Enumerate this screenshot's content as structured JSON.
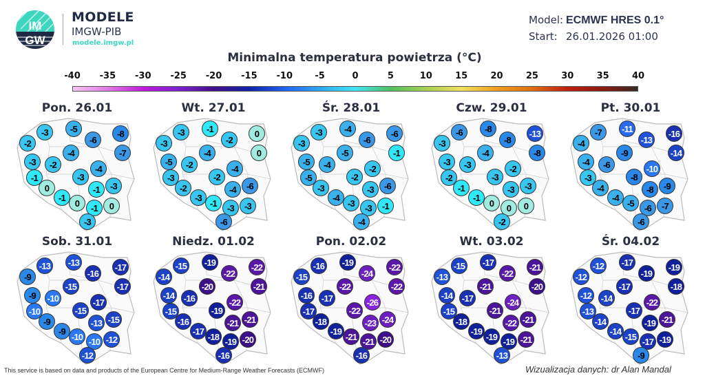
{
  "brand": {
    "title": "MODELE",
    "subtitle": "IMGW-PIB",
    "url": "modele.imgw.pl",
    "logo_text": "IMGW"
  },
  "meta": {
    "model_label": "Model:",
    "model_value": "ECMWF HRES 0.1°",
    "start_label": "Start:",
    "start_value": "26.01.2026 01:00"
  },
  "title": "Minimalna temperatura powietrza (°C)",
  "colorbar": {
    "ticks": [
      "-40",
      "-35",
      "-30",
      "-25",
      "-20",
      "-15",
      "-10",
      "-5",
      "0",
      "5",
      "10",
      "15",
      "20",
      "25",
      "30",
      "35",
      "40"
    ],
    "colors": [
      "#f6c6f0",
      "#e07ae2",
      "#c018dc",
      "#7a22d0",
      "#44108a",
      "#1022a8",
      "#2062f0",
      "#30a8f0",
      "#40e6f2",
      "#50c060",
      "#a8d050",
      "#f0e060",
      "#f0a020",
      "#e07010",
      "#c02010",
      "#8a1a12",
      "#3a2a22"
    ]
  },
  "circle_palette": [
    [
      -26,
      "#8a22e0"
    ],
    [
      -24,
      "#6c20c0"
    ],
    [
      -22,
      "#5a18a8"
    ],
    [
      -21,
      "#4c1498"
    ],
    [
      -20,
      "#3c1088"
    ],
    [
      -19,
      "#10209a"
    ],
    [
      -17,
      "#1a30b4"
    ],
    [
      -15,
      "#1c42c8"
    ],
    [
      -13,
      "#2052d8"
    ],
    [
      -11,
      "#2a6aec"
    ],
    [
      -10,
      "#2a78f4"
    ],
    [
      -9,
      "#2a88e8"
    ],
    [
      -7,
      "#3a98e6"
    ],
    [
      -5,
      "#3ab0ec"
    ],
    [
      -3,
      "#38c6f0"
    ],
    [
      -1,
      "#30e8f8"
    ],
    [
      0,
      "#a0ece0"
    ]
  ],
  "panels": [
    {
      "title": "Pon. 26.01",
      "values": [
        -3,
        -5,
        -6,
        -8,
        -2,
        -7,
        -4,
        -3,
        -2,
        -4,
        -1,
        -3,
        0,
        -1,
        -3,
        -1,
        0,
        -1,
        0,
        -3
      ]
    },
    {
      "title": "Wt. 27.01",
      "values": [
        -3,
        -1,
        -2,
        0,
        -3,
        0,
        -4,
        -5,
        -2,
        -4,
        -3,
        -2,
        -2,
        -4,
        -6,
        -3,
        -1,
        -3,
        -3,
        -6
      ]
    },
    {
      "title": "Śr. 28.01",
      "values": [
        -3,
        -4,
        -6,
        -6,
        -3,
        -1,
        -5,
        -5,
        -4,
        -2,
        -5,
        -2,
        -3,
        -3,
        -6,
        -4,
        -3,
        -3,
        -1,
        -4
      ]
    },
    {
      "title": "Czw. 29.01",
      "values": [
        -6,
        -8,
        -8,
        -13,
        -3,
        -8,
        -4,
        -3,
        -3,
        -2,
        -2,
        -3,
        -1,
        -3,
        -3,
        -1,
        0,
        0,
        0,
        -2
      ]
    },
    {
      "title": "Pt. 30.01",
      "values": [
        -7,
        -11,
        -13,
        -16,
        -4,
        -14,
        -9,
        -4,
        -6,
        -10,
        -3,
        -8,
        -4,
        -8,
        -9,
        -4,
        -5,
        -6,
        -7,
        -6
      ]
    },
    {
      "title": "Sob. 31.01",
      "values": [
        -13,
        -13,
        -16,
        -17,
        -9,
        -17,
        -15,
        -9,
        -10,
        -17,
        -10,
        -15,
        -9,
        -13,
        -15,
        -9,
        -10,
        -10,
        -12,
        -12
      ]
    },
    {
      "title": "Niedz. 01.02",
      "values": [
        -15,
        -19,
        -22,
        -22,
        -14,
        -21,
        -20,
        -14,
        -16,
        -22,
        -15,
        -19,
        -16,
        -21,
        -21,
        -17,
        -18,
        -19,
        -20,
        -16
      ]
    },
    {
      "title": "Pon. 02.02",
      "values": [
        -16,
        -19,
        -24,
        -22,
        -15,
        -22,
        -22,
        -16,
        -17,
        -26,
        -17,
        -22,
        -18,
        -23,
        -24,
        -19,
        -21,
        -21,
        -20,
        -16
      ]
    },
    {
      "title": "Wt. 03.02",
      "values": [
        -15,
        -17,
        -22,
        -21,
        -13,
        -20,
        -21,
        -14,
        -17,
        -24,
        -15,
        -21,
        -18,
        -22,
        -21,
        -19,
        -19,
        -19,
        -21,
        -13
      ]
    },
    {
      "title": "Śr. 04.02",
      "values": [
        -12,
        -17,
        -19,
        -19,
        -12,
        -18,
        -17,
        -12,
        -14,
        -22,
        -13,
        -17,
        -14,
        -19,
        -21,
        -14,
        -15,
        -17,
        -19,
        -9
      ]
    }
  ],
  "footer": {
    "source": "This service is based on data and products of the European Centre for Medium-Range Weather Forecasts (ECMWF)",
    "credit": "Wizualizacja danych: dr Alan Mandal"
  }
}
